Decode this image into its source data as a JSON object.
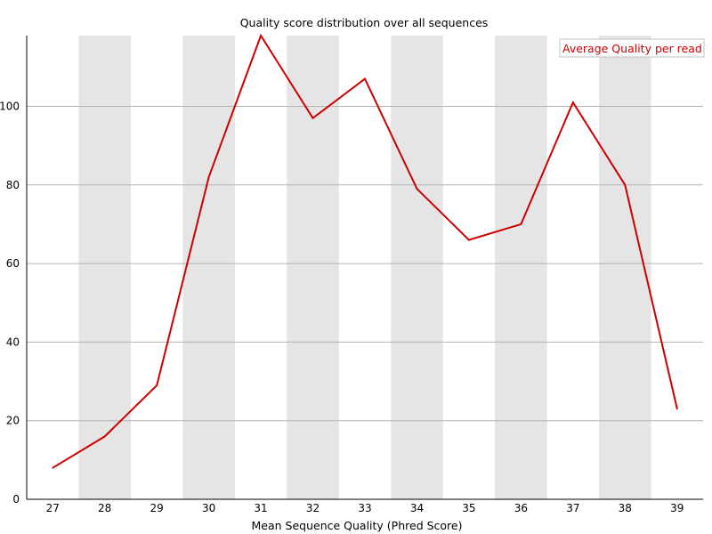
{
  "chart_data": {
    "type": "line",
    "title": "Quality score distribution over all sequences",
    "xlabel": "Mean Sequence Quality (Phred Score)",
    "ylabel": "",
    "x": [
      27,
      28,
      29,
      30,
      31,
      32,
      33,
      34,
      35,
      36,
      37,
      38,
      39
    ],
    "ylim": [
      0,
      118
    ],
    "yticks": [
      0,
      20,
      40,
      60,
      80,
      100
    ],
    "grid": true,
    "alternating_bands": true,
    "legend_position": "top-right",
    "series": [
      {
        "name": "Average Quality per read",
        "color": "#cc0000",
        "values": [
          8,
          16,
          29,
          82,
          118,
          97,
          107,
          79,
          66,
          70,
          101,
          80,
          23
        ]
      }
    ]
  },
  "colors": {
    "band": "#e5e5e5",
    "gridline": "#b4b4b4",
    "axis": "#000000",
    "series": "#cc0000",
    "legend_border": "#c0c0c0"
  }
}
